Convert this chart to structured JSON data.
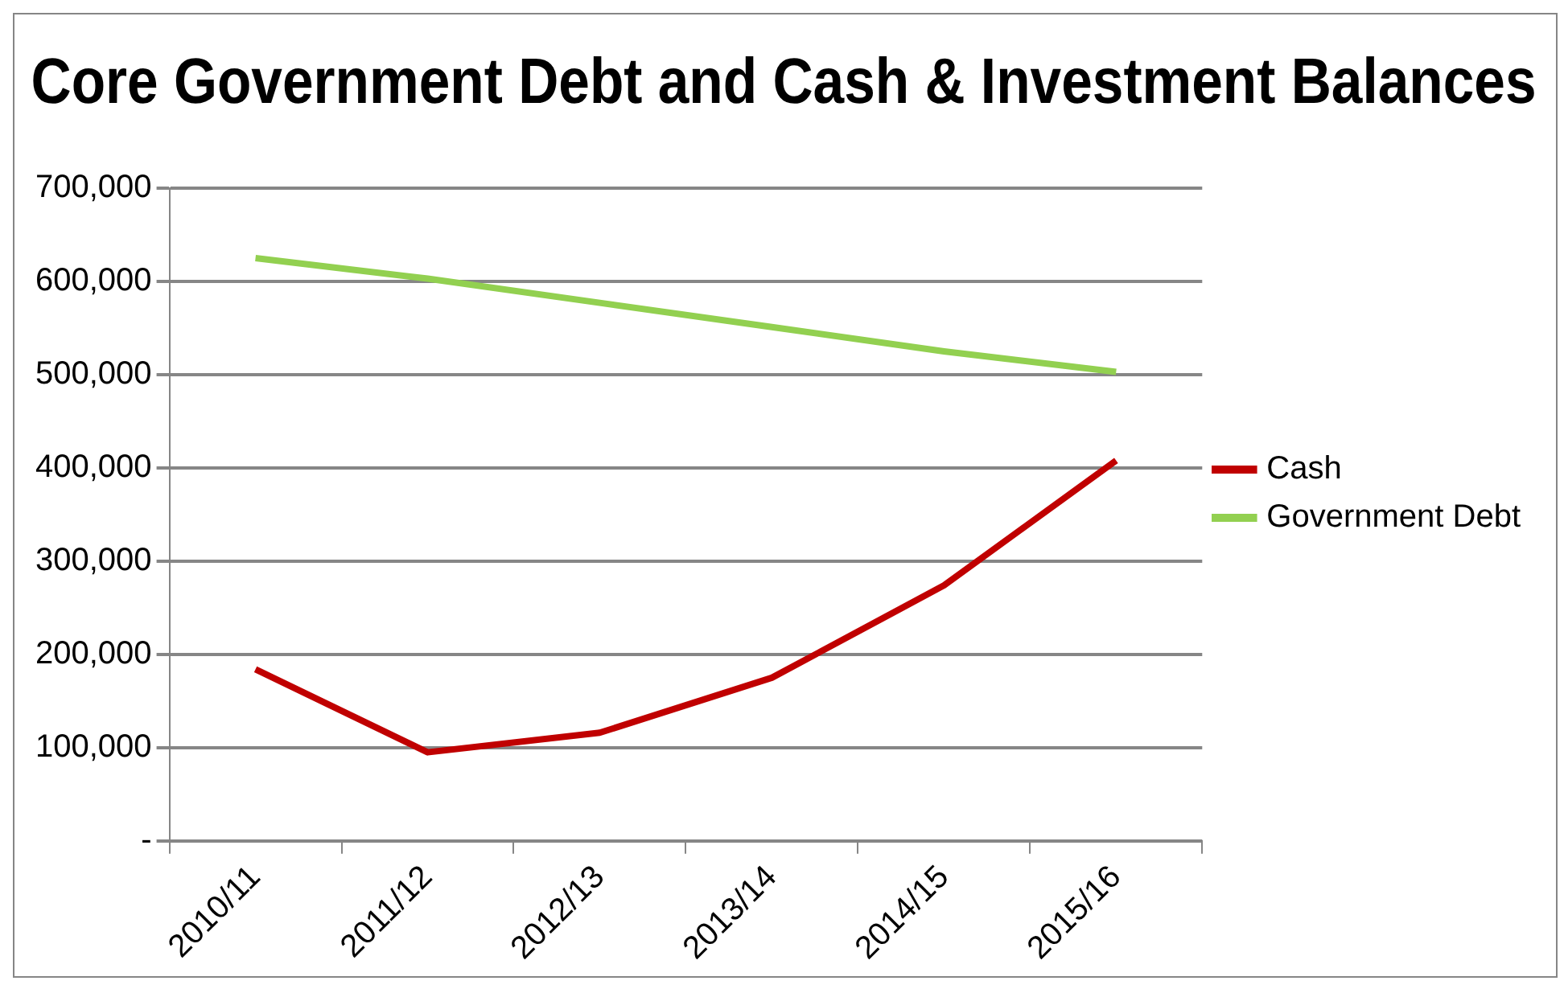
{
  "chart_data": {
    "type": "line",
    "title": "Core Government Debt and Cash & Investment Balances",
    "categories": [
      "2010/11",
      "2011/12",
      "2012/13",
      "2013/14",
      "2014/15",
      "2015/16"
    ],
    "series": [
      {
        "name": "Cash",
        "color": "#c00000",
        "values": [
          184000,
          95000,
          116000,
          175000,
          274000,
          408000
        ]
      },
      {
        "name": "Government Debt",
        "color": "#92d050",
        "values": [
          625000,
          603000,
          577000,
          551000,
          525000,
          503000
        ]
      }
    ],
    "ylim": [
      0,
      700000
    ],
    "yticks": [
      {
        "value": 0,
        "label": "-"
      },
      {
        "value": 100000,
        "label": "100,000"
      },
      {
        "value": 200000,
        "label": "200,000"
      },
      {
        "value": 300000,
        "label": "300,000"
      },
      {
        "value": 400000,
        "label": "400,000"
      },
      {
        "value": 500000,
        "label": "500,000"
      },
      {
        "value": 600000,
        "label": "600,000"
      },
      {
        "value": 700000,
        "label": "700,000"
      }
    ],
    "grid": "y",
    "legend": "right",
    "marker": "none",
    "line_style": "solid"
  }
}
